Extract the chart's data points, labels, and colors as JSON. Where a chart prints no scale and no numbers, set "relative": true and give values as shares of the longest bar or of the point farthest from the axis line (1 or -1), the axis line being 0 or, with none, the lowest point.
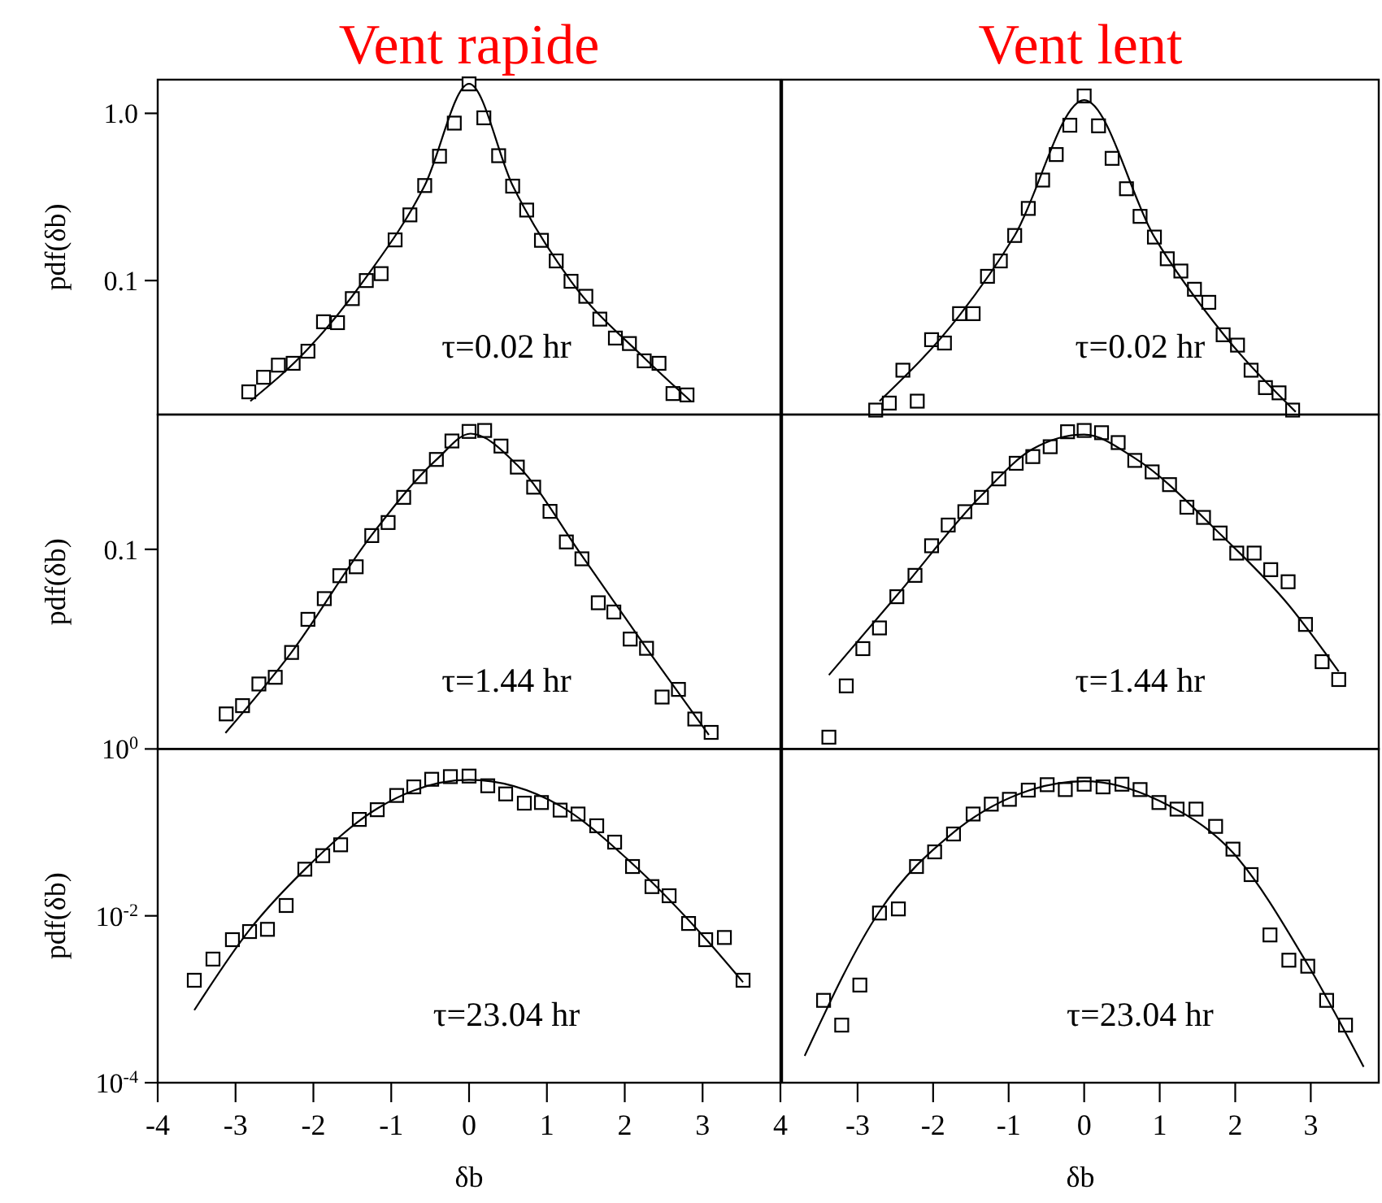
{
  "chart_data": [
    {
      "type": "scatter",
      "title": "Vent rapide",
      "ylabel": "pdf(δb)",
      "annotations": [
        "τ=0.02 hr"
      ],
      "log": "y",
      "marker": "square",
      "tick_labels": "y",
      "xlim": [
        -4,
        4
      ],
      "ylim": [
        0.0158,
        1.59
      ],
      "yticks": [
        {
          "value": 1,
          "label": "1.0"
        },
        0.1
      ],
      "series": [
        {
          "color": "#000000",
          "x": [
            -2.83,
            -2.64,
            -2.45,
            -2.26,
            -2.07,
            -1.87,
            -1.69,
            -1.5,
            -1.32,
            -1.13,
            -0.95,
            -0.76,
            -0.57,
            -0.38,
            -0.19,
            0,
            0.19,
            0.38,
            0.56,
            0.74,
            0.93,
            1.12,
            1.31,
            1.5,
            1.68,
            1.88,
            2.06,
            2.25,
            2.44,
            2.62,
            2.8
          ],
          "values": [
            0.0216,
            0.0264,
            0.0312,
            0.032,
            0.0378,
            0.0567,
            0.056,
            0.078,
            0.1,
            0.11,
            0.175,
            0.247,
            0.37,
            0.554,
            0.874,
            1.5,
            0.94,
            0.558,
            0.367,
            0.264,
            0.174,
            0.131,
            0.099,
            0.0805,
            0.0588,
            0.0453,
            0.042,
            0.0331,
            0.032,
            0.0211,
            0.0207
          ]
        },
        {
          "type": "line",
          "marker": "none",
          "color": "#000000",
          "x": [
            -2.81,
            -2.07,
            -1.32,
            -0.57,
            0,
            0.56,
            1.31,
            2.25,
            2.85
          ],
          "values": [
            0.019,
            0.039,
            0.105,
            0.37,
            1.5,
            0.37,
            0.099,
            0.0345,
            0.019
          ]
        }
      ]
    },
    {
      "type": "scatter",
      "title": "Vent lent",
      "annotations": [
        "τ=0.02 hr"
      ],
      "log": "y",
      "marker": "square",
      "tick_labels": false,
      "xlim": [
        -4,
        3.9
      ],
      "ylim": [
        0.0158,
        1.59
      ],
      "series": [
        {
          "color": "#000000",
          "x": [
            -2.76,
            -2.58,
            -2.4,
            -2.21,
            -2.02,
            -1.85,
            -1.65,
            -1.47,
            -1.28,
            -1.11,
            -0.92,
            -0.74,
            -0.55,
            -0.37,
            -0.19,
            0,
            0.19,
            0.37,
            0.56,
            0.74,
            0.93,
            1.1,
            1.28,
            1.46,
            1.65,
            1.84,
            2.03,
            2.21,
            2.4,
            2.58,
            2.76
          ],
          "values": [
            0.0168,
            0.0185,
            0.0291,
            0.019,
            0.0443,
            0.0423,
            0.0634,
            0.0634,
            0.106,
            0.131,
            0.186,
            0.27,
            0.399,
            0.567,
            0.849,
            1.27,
            0.842,
            0.538,
            0.354,
            0.242,
            0.182,
            0.135,
            0.114,
            0.0887,
            0.0741,
            0.0474,
            0.0411,
            0.0291,
            0.0229,
            0.0213,
            0.0168
          ]
        },
        {
          "type": "line",
          "marker": "none",
          "color": "#000000",
          "x": [
            -2.71,
            -1.65,
            -0.92,
            0,
            0.93,
            1.84,
            2.8
          ],
          "values": [
            0.019,
            0.062,
            0.186,
            1.2,
            0.182,
            0.048,
            0.0164
          ]
        }
      ]
    },
    {
      "type": "scatter",
      "ylabel": "pdf(δb)",
      "annotations": [
        "τ=1.44 hr",
        "0.1"
      ],
      "relative": true,
      "marker": "square",
      "tick_labels": false,
      "xlim": [
        -4,
        4
      ],
      "series": [
        {
          "color": "#000000",
          "x": [
            -3.12,
            -2.91,
            -2.7,
            -2.49,
            -2.28,
            -2.07,
            -1.86,
            -1.66,
            -1.45,
            -1.25,
            -1.04,
            -0.84,
            -0.63,
            -0.42,
            -0.22,
            0,
            0.2,
            0.41,
            0.62,
            0.83,
            1.04,
            1.25,
            1.45,
            1.66,
            1.86,
            2.07,
            2.28,
            2.48,
            2.69,
            2.9,
            3.11
          ],
          "values": [
            0.11,
            0.136,
            0.204,
            0.225,
            0.303,
            0.407,
            0.472,
            0.544,
            0.572,
            0.67,
            0.711,
            0.79,
            0.855,
            0.909,
            0.967,
            0.997,
            1,
            0.951,
            0.885,
            0.822,
            0.746,
            0.65,
            0.597,
            0.459,
            0.43,
            0.345,
            0.316,
            0.163,
            0.187,
            0.094,
            0.052
          ]
        },
        {
          "type": "line",
          "marker": "none",
          "color": "#000000",
          "x": [
            -3.13,
            -2.28,
            -1.25,
            -0.42,
            0.02,
            0.62,
            1.45,
            2.28,
            3.08
          ],
          "values": [
            0.05,
            0.304,
            0.672,
            0.908,
            0.99,
            0.891,
            0.607,
            0.316,
            0.044
          ]
        }
      ]
    },
    {
      "type": "scatter",
      "annotations": [
        "τ=1.44 hr"
      ],
      "relative": true,
      "marker": "square",
      "tick_labels": false,
      "xlim": [
        -4,
        3.9
      ],
      "series": [
        {
          "color": "#000000",
          "x": [
            -3.38,
            -3.15,
            -2.93,
            -2.71,
            -2.48,
            -2.24,
            -2.02,
            -1.8,
            -1.58,
            -1.36,
            -1.13,
            -0.9,
            -0.68,
            -0.45,
            -0.22,
            0,
            0.23,
            0.45,
            0.67,
            0.9,
            1.13,
            1.36,
            1.58,
            1.8,
            2.02,
            2.25,
            2.47,
            2.7,
            2.93,
            3.15,
            3.37
          ],
          "values": [
            0.037,
            0.198,
            0.315,
            0.38,
            0.478,
            0.545,
            0.638,
            0.703,
            0.745,
            0.79,
            0.848,
            0.897,
            0.918,
            0.949,
            0.996,
            1,
            0.993,
            0.962,
            0.906,
            0.87,
            0.83,
            0.759,
            0.727,
            0.678,
            0.615,
            0.615,
            0.563,
            0.525,
            0.391,
            0.274,
            0.218
          ]
        },
        {
          "type": "line",
          "marker": "none",
          "color": "#000000",
          "x": [
            -3.38,
            -2.48,
            -1.36,
            -0.68,
            0,
            0.67,
            1.8,
            2.7,
            3.37
          ],
          "values": [
            0.232,
            0.482,
            0.796,
            0.942,
            0.987,
            0.913,
            0.675,
            0.454,
            0.243
          ]
        }
      ]
    },
    {
      "type": "scatter",
      "ylabel": "pdf(δb)",
      "xlabel": "δb",
      "annotations": [
        "τ=23.04 hr"
      ],
      "log": "y",
      "marker": "square",
      "xlim": [
        -4,
        4
      ],
      "xticks": [
        -4,
        -3,
        -2,
        -1,
        0,
        1,
        2,
        3,
        4
      ],
      "ylim": [
        0.0001,
        1
      ],
      "yticks": [
        {
          "value": 1,
          "label": "10$^{0}$"
        },
        {
          "value": 0.01,
          "label": "10$^{-2}$"
        },
        {
          "value": 0.0001,
          "label": "10$^{-4}$"
        }
      ],
      "series": [
        {
          "color": "#000000",
          "x": [
            -3.53,
            -3.29,
            -3.04,
            -2.82,
            -2.59,
            -2.35,
            -2.11,
            -1.88,
            -1.65,
            -1.41,
            -1.18,
            -0.93,
            -0.71,
            -0.48,
            -0.24,
            0,
            0.24,
            0.47,
            0.71,
            0.93,
            1.17,
            1.4,
            1.64,
            1.87,
            2.1,
            2.35,
            2.57,
            2.82,
            3.04,
            3.28,
            3.52
          ],
          "values": [
            0.00169,
            0.00303,
            0.00518,
            0.00648,
            0.00689,
            0.0133,
            0.0362,
            0.0526,
            0.071,
            0.143,
            0.187,
            0.277,
            0.351,
            0.433,
            0.466,
            0.473,
            0.362,
            0.289,
            0.224,
            0.228,
            0.185,
            0.166,
            0.12,
            0.0764,
            0.039,
            0.0224,
            0.0174,
            0.0081,
            0.00518,
            0.0055,
            0.00169
          ]
        },
        {
          "type": "line",
          "marker": "none",
          "color": "#000000",
          "x": [
            -3.53,
            -2.82,
            -2.11,
            -1.18,
            0,
            1.17,
            2.1,
            3.04,
            3.52
          ],
          "values": [
            0.00074,
            0.0068,
            0.036,
            0.193,
            0.426,
            0.208,
            0.042,
            0.0053,
            0.0016
          ]
        }
      ]
    },
    {
      "type": "scatter",
      "xlabel": "δb",
      "annotations": [
        "τ=23.04 hr"
      ],
      "log": "y",
      "marker": "square",
      "tick_labels": "x",
      "xlim": [
        -4,
        3.9
      ],
      "xticks": [
        -3,
        -2,
        -1,
        0,
        1,
        2,
        3
      ],
      "ylim": [
        0.0001,
        1
      ],
      "series": [
        {
          "color": "#000000",
          "x": [
            -3.45,
            -3.21,
            -2.97,
            -2.71,
            -2.46,
            -2.22,
            -1.98,
            -1.73,
            -1.47,
            -1.23,
            -0.99,
            -0.74,
            -0.49,
            -0.25,
            0,
            0.25,
            0.5,
            0.74,
            0.99,
            1.23,
            1.48,
            1.74,
            1.97,
            2.21,
            2.46,
            2.71,
            2.96,
            3.21,
            3.46
          ],
          "values": [
            0.00097,
            0.00049,
            0.00148,
            0.0108,
            0.0121,
            0.039,
            0.0584,
            0.0957,
            0.166,
            0.218,
            0.249,
            0.321,
            0.373,
            0.326,
            0.378,
            0.351,
            0.378,
            0.326,
            0.228,
            0.19,
            0.19,
            0.118,
            0.063,
            0.0312,
            0.0059,
            0.00294,
            0.00249,
            0.00097,
            0.00049
          ]
        },
        {
          "type": "line",
          "marker": "none",
          "color": "#000000",
          "x": [
            -3.7,
            -2.71,
            -1.73,
            -0.74,
            0,
            0.99,
            1.97,
            2.96,
            3.7
          ],
          "values": [
            0.00021,
            0.0113,
            0.1,
            0.316,
            0.41,
            0.24,
            0.057,
            0.0026,
            0.000155
          ]
        }
      ]
    }
  ]
}
